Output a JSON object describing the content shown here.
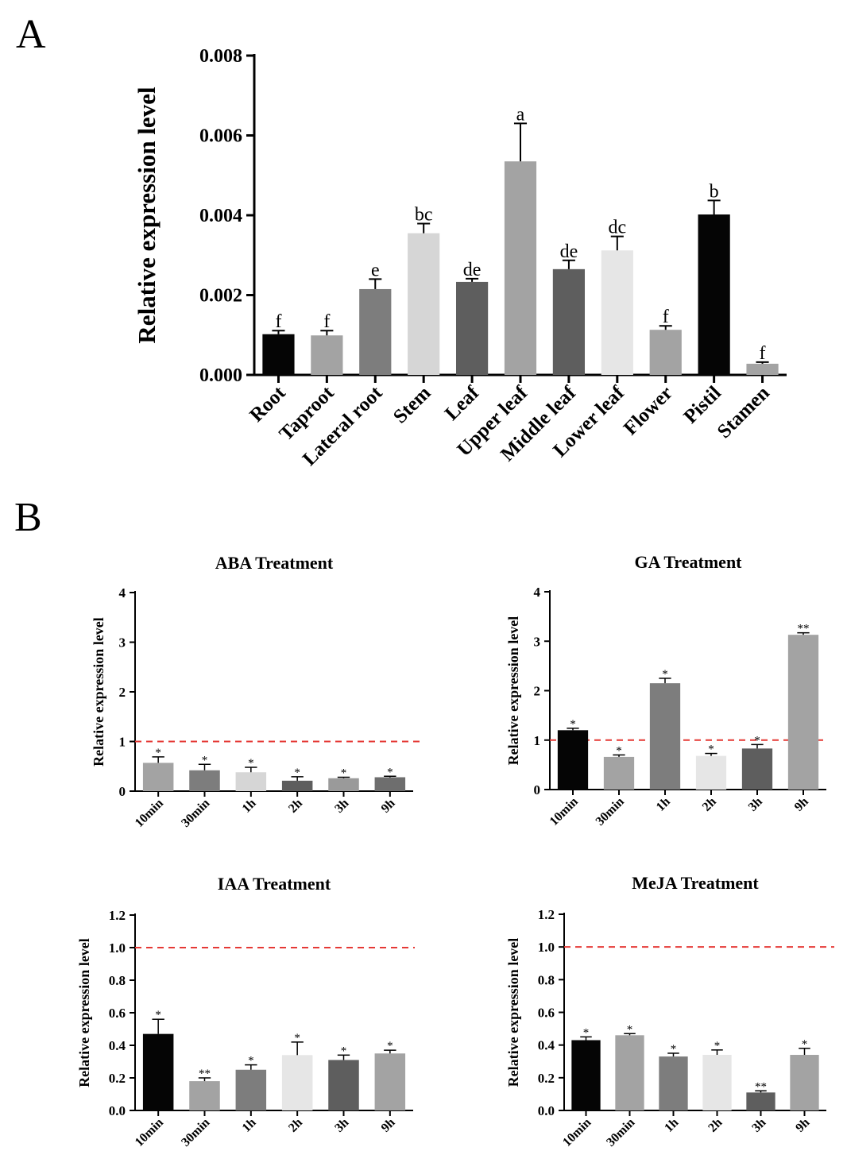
{
  "figure": {
    "panel_a_label": "A",
    "panel_b_label": "B",
    "colors": {
      "black": "#050505",
      "light_gray": "#a3a3a3",
      "mid_gray": "#7d7d7d",
      "pale_gray": "#d6d6d6",
      "dark_gray": "#5e5e5e",
      "very_light_gray": "#e6e6e6",
      "medium_light_gray": "#9a9a9a",
      "reference_line": "#e53935"
    }
  },
  "chart_data": [
    {
      "type": "bar",
      "panel": "A",
      "title": "",
      "xlabel": "",
      "ylabel": "Relative expression level",
      "ylim": [
        0,
        0.008
      ],
      "yticks": [
        "0.000",
        "0.002",
        "0.004",
        "0.006",
        "0.008"
      ],
      "ytick_values": [
        0,
        0.002,
        0.004,
        0.006,
        0.008
      ],
      "categories": [
        "Root",
        "Taproot",
        "Lateral root",
        "Stem",
        "Leaf",
        "Upper leaf",
        "Middle leaf",
        "Lower leaf",
        "Flower",
        "Pistil",
        "Stamen"
      ],
      "values": [
        0.00102,
        0.00099,
        0.00215,
        0.00355,
        0.00233,
        0.00535,
        0.00265,
        0.00312,
        0.00113,
        0.00402,
        0.00028
      ],
      "errors": [
        9e-05,
        0.00012,
        0.00025,
        0.00024,
        8e-05,
        0.00095,
        0.00022,
        0.00035,
        0.0001,
        0.00035,
        4e-05
      ],
      "significance": [
        "f",
        "f",
        "e",
        "bc",
        "de",
        "a",
        "de",
        "dc",
        "f",
        "b",
        "f"
      ],
      "bar_colors": [
        "#050505",
        "#a3a3a3",
        "#7d7d7d",
        "#d6d6d6",
        "#5e5e5e",
        "#a3a3a3",
        "#5e5e5e",
        "#e6e6e6",
        "#a3a3a3",
        "#050505",
        "#a3a3a3"
      ]
    },
    {
      "type": "bar",
      "panel": "B",
      "title": "ABA Treatment",
      "xlabel": "",
      "ylabel": "Relative expression level",
      "ylim": [
        0,
        4
      ],
      "yticks": [
        "0",
        "1",
        "2",
        "3",
        "4"
      ],
      "ytick_values": [
        0,
        1,
        2,
        3,
        4
      ],
      "reference_line": 1,
      "categories": [
        "10min",
        "30min",
        "1h",
        "2h",
        "3h",
        "9h"
      ],
      "values": [
        0.57,
        0.42,
        0.38,
        0.21,
        0.26,
        0.28
      ],
      "errors": [
        0.12,
        0.12,
        0.1,
        0.08,
        0.02,
        0.02
      ],
      "significance": [
        "*",
        "*",
        "*",
        "*",
        "*",
        "*"
      ],
      "bar_colors": [
        "#a3a3a3",
        "#7d7d7d",
        "#d6d6d6",
        "#5e5e5e",
        "#9a9a9a",
        "#6e6e6e"
      ]
    },
    {
      "type": "bar",
      "panel": "B",
      "title": "GA Treatment",
      "xlabel": "",
      "ylabel": "Relative expression level",
      "ylim": [
        0,
        4
      ],
      "yticks": [
        "0",
        "1",
        "2",
        "3",
        "4"
      ],
      "ytick_values": [
        0,
        1,
        2,
        3,
        4
      ],
      "reference_line": 1,
      "categories": [
        "10min",
        "30min",
        "1h",
        "2h",
        "3h",
        "9h"
      ],
      "values": [
        1.2,
        0.66,
        2.15,
        0.68,
        0.83,
        3.13
      ],
      "errors": [
        0.04,
        0.04,
        0.1,
        0.05,
        0.08,
        0.04
      ],
      "significance": [
        "*",
        "*",
        "*",
        "*",
        "*",
        "**"
      ],
      "bar_colors": [
        "#050505",
        "#a3a3a3",
        "#7d7d7d",
        "#e6e6e6",
        "#5e5e5e",
        "#a3a3a3"
      ]
    },
    {
      "type": "bar",
      "panel": "B",
      "title": "IAA Treatment",
      "xlabel": "",
      "ylabel": "Relative expression level",
      "ylim": [
        0,
        1.2
      ],
      "yticks": [
        "0.0",
        "0.2",
        "0.4",
        "0.6",
        "0.8",
        "1.0",
        "1.2"
      ],
      "ytick_values": [
        0,
        0.2,
        0.4,
        0.6,
        0.8,
        1.0,
        1.2
      ],
      "reference_line": 1,
      "categories": [
        "10min",
        "30min",
        "1h",
        "2h",
        "3h",
        "9h"
      ],
      "values": [
        0.47,
        0.18,
        0.25,
        0.34,
        0.31,
        0.35
      ],
      "errors": [
        0.09,
        0.02,
        0.03,
        0.08,
        0.03,
        0.02
      ],
      "significance": [
        "*",
        "**",
        "*",
        "*",
        "*",
        "*"
      ],
      "bar_colors": [
        "#050505",
        "#a3a3a3",
        "#7d7d7d",
        "#e6e6e6",
        "#5e5e5e",
        "#a3a3a3"
      ]
    },
    {
      "type": "bar",
      "panel": "B",
      "title": "MeJA Treatment",
      "xlabel": "",
      "ylabel": "Relative expression level",
      "ylim": [
        0,
        1.2
      ],
      "yticks": [
        "0.0",
        "0.2",
        "0.4",
        "0.6",
        "0.8",
        "1.0",
        "1.2"
      ],
      "ytick_values": [
        0,
        0.2,
        0.4,
        0.6,
        0.8,
        1.0,
        1.2
      ],
      "reference_line": 1,
      "categories": [
        "10min",
        "30min",
        "1h",
        "2h",
        "3h",
        "9h"
      ],
      "values": [
        0.43,
        0.46,
        0.33,
        0.34,
        0.11,
        0.34
      ],
      "errors": [
        0.02,
        0.01,
        0.02,
        0.03,
        0.01,
        0.04
      ],
      "significance": [
        "*",
        "*",
        "*",
        "*",
        "**",
        "*"
      ],
      "bar_colors": [
        "#050505",
        "#a3a3a3",
        "#7d7d7d",
        "#e6e6e6",
        "#5e5e5e",
        "#a3a3a3"
      ]
    }
  ]
}
